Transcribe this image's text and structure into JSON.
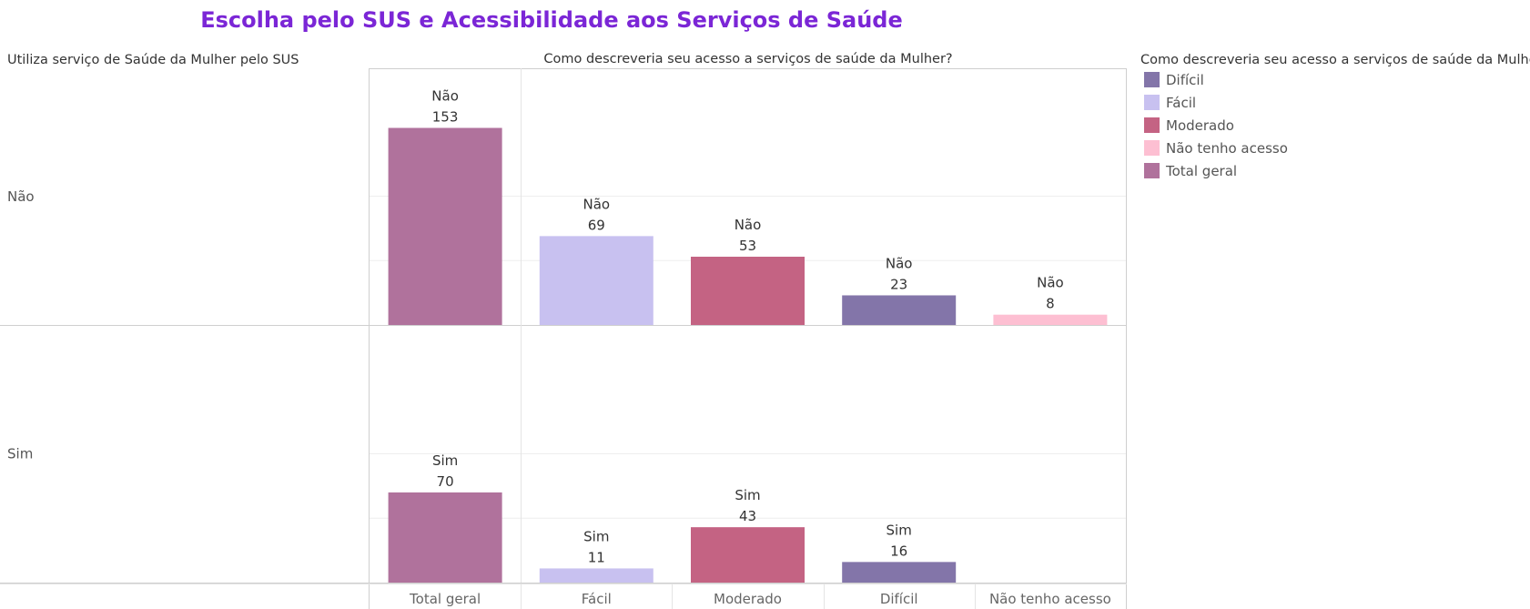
{
  "chart_data": {
    "type": "bar",
    "title": "Escolha pelo SUS e Acessibilidade aos Serviços de Saúde",
    "row_header": "Utiliza serviço de Saúde da Mulher pelo SUS",
    "column_header": "Como descreveria seu acesso a serviços de saúde da Mulher?",
    "categories": [
      "Total geral",
      "Fácil",
      "Moderado",
      "Difícil",
      "Não tenho acesso"
    ],
    "rows": [
      {
        "label": "Não",
        "values": [
          153,
          69,
          53,
          23,
          8
        ]
      },
      {
        "label": "Sim",
        "values": [
          70,
          11,
          43,
          16,
          null
        ]
      }
    ],
    "ylim": [
      0,
      200
    ],
    "grid": true,
    "legend": {
      "title": "Como descreveria seu acesso a serviços de saúde da Mulher?",
      "position": "top-right",
      "items": [
        {
          "label": "Difícil",
          "color": "#8375a9"
        },
        {
          "label": "Fácil",
          "color": "#c8c1f0"
        },
        {
          "label": "Moderado",
          "color": "#c46383"
        },
        {
          "label": "Não tenho acesso",
          "color": "#fdbfd2"
        },
        {
          "label": "Total geral",
          "color": "#b0729c"
        }
      ]
    },
    "category_colors": {
      "Total geral": "#b0729c",
      "Fácil": "#c8c1f0",
      "Moderado": "#c46383",
      "Difícil": "#8375a9",
      "Não tenho acesso": "#fdbfd2"
    }
  }
}
